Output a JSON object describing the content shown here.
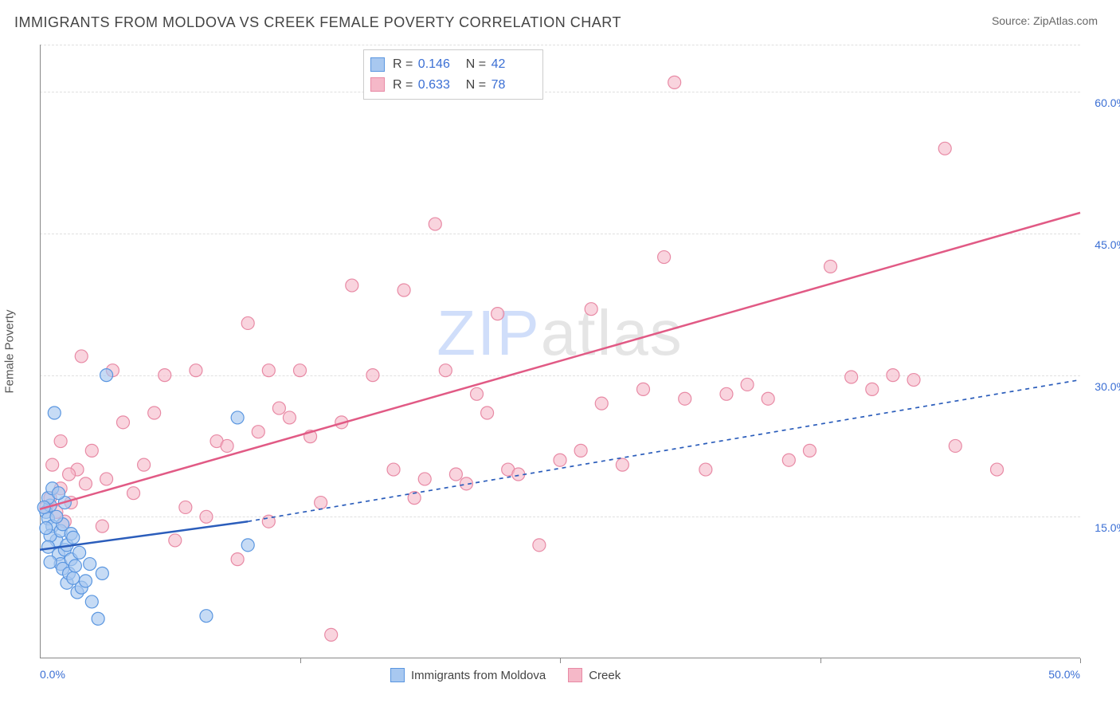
{
  "title": "IMMIGRANTS FROM MOLDOVA VS CREEK FEMALE POVERTY CORRELATION CHART",
  "source_label": "Source: ",
  "source_name": "ZipAtlas.com",
  "ylabel": "Female Poverty",
  "watermark_a": "ZIP",
  "watermark_b": "atlas",
  "chart": {
    "type": "scatter",
    "xlim": [
      0,
      50
    ],
    "ylim": [
      0,
      65
    ],
    "ytick_positions": [
      15,
      30,
      45,
      60
    ],
    "ytick_labels": [
      "15.0%",
      "30.0%",
      "45.0%",
      "60.0%"
    ],
    "xtick_positions": [
      0,
      50
    ],
    "xtick_labels": [
      "0.0%",
      "50.0%"
    ],
    "xtick_marks": [
      12.5,
      25,
      37.5,
      50
    ],
    "background_color": "#ffffff",
    "grid_color": "#e0e0e0",
    "axis_color": "#888888",
    "series": [
      {
        "name": "Immigrants from Moldova",
        "R_label": "R =",
        "R": "0.146",
        "N_label": "N =",
        "N": "42",
        "marker_fill": "#a8c8f0",
        "marker_stroke": "#5a96e0",
        "marker_opacity": 0.65,
        "marker_radius": 8,
        "line_color": "#2b5dbb",
        "line_width": 2.5,
        "line_dash_ext": "5,5",
        "trend_solid": {
          "x1": 0,
          "y1": 11.5,
          "x2": 10,
          "y2": 14.5
        },
        "trend_dash": {
          "x1": 10,
          "y1": 14.5,
          "x2": 50,
          "y2": 29.5
        },
        "points": [
          [
            0.3,
            15.5
          ],
          [
            0.4,
            14.8
          ],
          [
            0.5,
            16.2
          ],
          [
            0.6,
            14.0
          ],
          [
            0.8,
            12.5
          ],
          [
            0.5,
            13.0
          ],
          [
            0.9,
            11.0
          ],
          [
            1.0,
            10.0
          ],
          [
            1.1,
            9.5
          ],
          [
            1.3,
            8.0
          ],
          [
            1.2,
            11.5
          ],
          [
            1.4,
            9.0
          ],
          [
            1.5,
            10.5
          ],
          [
            1.6,
            8.5
          ],
          [
            1.8,
            7.0
          ],
          [
            0.7,
            26.0
          ],
          [
            1.0,
            13.5
          ],
          [
            1.7,
            9.8
          ],
          [
            2.0,
            7.5
          ],
          [
            2.2,
            8.2
          ],
          [
            2.5,
            6.0
          ],
          [
            2.8,
            4.2
          ],
          [
            3.0,
            9.0
          ],
          [
            3.2,
            30.0
          ],
          [
            1.9,
            11.2
          ],
          [
            0.4,
            17.0
          ],
          [
            0.6,
            18.0
          ],
          [
            1.1,
            14.2
          ],
          [
            1.3,
            12.0
          ],
          [
            1.5,
            13.2
          ],
          [
            0.2,
            16.0
          ],
          [
            0.3,
            13.8
          ],
          [
            0.8,
            15.0
          ],
          [
            2.4,
            10.0
          ],
          [
            8.0,
            4.5
          ],
          [
            9.5,
            25.5
          ],
          [
            10.0,
            12.0
          ],
          [
            0.5,
            10.2
          ],
          [
            1.2,
            16.5
          ],
          [
            0.9,
            17.5
          ],
          [
            0.4,
            11.8
          ],
          [
            1.6,
            12.8
          ]
        ]
      },
      {
        "name": "Creek",
        "R_label": "R =",
        "R": "0.633",
        "N_label": "N =",
        "N": "78",
        "marker_fill": "#f5b8c8",
        "marker_stroke": "#e88aa5",
        "marker_opacity": 0.6,
        "marker_radius": 8,
        "line_color": "#e15a85",
        "line_width": 2.5,
        "trend_solid": {
          "x1": 0,
          "y1": 15.8,
          "x2": 50,
          "y2": 47.2
        },
        "points": [
          [
            0.3,
            16.0
          ],
          [
            0.5,
            17.0
          ],
          [
            0.8,
            15.5
          ],
          [
            1.0,
            18.0
          ],
          [
            1.2,
            14.5
          ],
          [
            1.5,
            16.5
          ],
          [
            1.8,
            20.0
          ],
          [
            2.0,
            32.0
          ],
          [
            2.2,
            18.5
          ],
          [
            2.5,
            22.0
          ],
          [
            3.0,
            14.0
          ],
          [
            3.2,
            19.0
          ],
          [
            3.5,
            30.5
          ],
          [
            4.0,
            25.0
          ],
          [
            4.5,
            17.5
          ],
          [
            5.0,
            20.5
          ],
          [
            5.5,
            26.0
          ],
          [
            6.0,
            30.0
          ],
          [
            6.5,
            12.5
          ],
          [
            7.0,
            16.0
          ],
          [
            7.5,
            30.5
          ],
          [
            8.0,
            15.0
          ],
          [
            8.5,
            23.0
          ],
          [
            9.0,
            22.5
          ],
          [
            9.5,
            10.5
          ],
          [
            10.0,
            35.5
          ],
          [
            10.5,
            24.0
          ],
          [
            11.0,
            14.5
          ],
          [
            11.5,
            26.5
          ],
          [
            12.0,
            25.5
          ],
          [
            12.5,
            30.5
          ],
          [
            13.0,
            23.5
          ],
          [
            13.5,
            16.5
          ],
          [
            14.0,
            2.5
          ],
          [
            14.5,
            25.0
          ],
          [
            15.0,
            39.5
          ],
          [
            16.0,
            30.0
          ],
          [
            17.0,
            20.0
          ],
          [
            17.5,
            39.0
          ],
          [
            18.0,
            17.0
          ],
          [
            18.5,
            19.0
          ],
          [
            19.0,
            46.0
          ],
          [
            19.5,
            30.5
          ],
          [
            20.0,
            19.5
          ],
          [
            20.5,
            18.5
          ],
          [
            21.0,
            28.0
          ],
          [
            21.5,
            26.0
          ],
          [
            22.0,
            36.5
          ],
          [
            22.5,
            20.0
          ],
          [
            23.0,
            19.5
          ],
          [
            24.0,
            12.0
          ],
          [
            25.0,
            21.0
          ],
          [
            26.0,
            22.0
          ],
          [
            26.5,
            37.0
          ],
          [
            27.0,
            27.0
          ],
          [
            28.0,
            20.5
          ],
          [
            29.0,
            28.5
          ],
          [
            30.0,
            42.5
          ],
          [
            30.5,
            61.0
          ],
          [
            31.0,
            27.5
          ],
          [
            32.0,
            20.0
          ],
          [
            33.0,
            28.0
          ],
          [
            34.0,
            29.0
          ],
          [
            35.0,
            27.5
          ],
          [
            36.0,
            21.0
          ],
          [
            37.0,
            22.0
          ],
          [
            38.0,
            41.5
          ],
          [
            39.0,
            29.8
          ],
          [
            40.0,
            28.5
          ],
          [
            41.0,
            30.0
          ],
          [
            42.0,
            29.5
          ],
          [
            43.5,
            54.0
          ],
          [
            44.0,
            22.5
          ],
          [
            46.0,
            20.0
          ],
          [
            11.0,
            30.5
          ],
          [
            1.0,
            23.0
          ],
          [
            0.6,
            20.5
          ],
          [
            1.4,
            19.5
          ]
        ]
      }
    ],
    "legend_items": [
      {
        "label": "Immigrants from Moldova",
        "fill": "#a8c8f0",
        "stroke": "#5a96e0"
      },
      {
        "label": "Creek",
        "fill": "#f5b8c8",
        "stroke": "#e88aa5"
      }
    ]
  }
}
